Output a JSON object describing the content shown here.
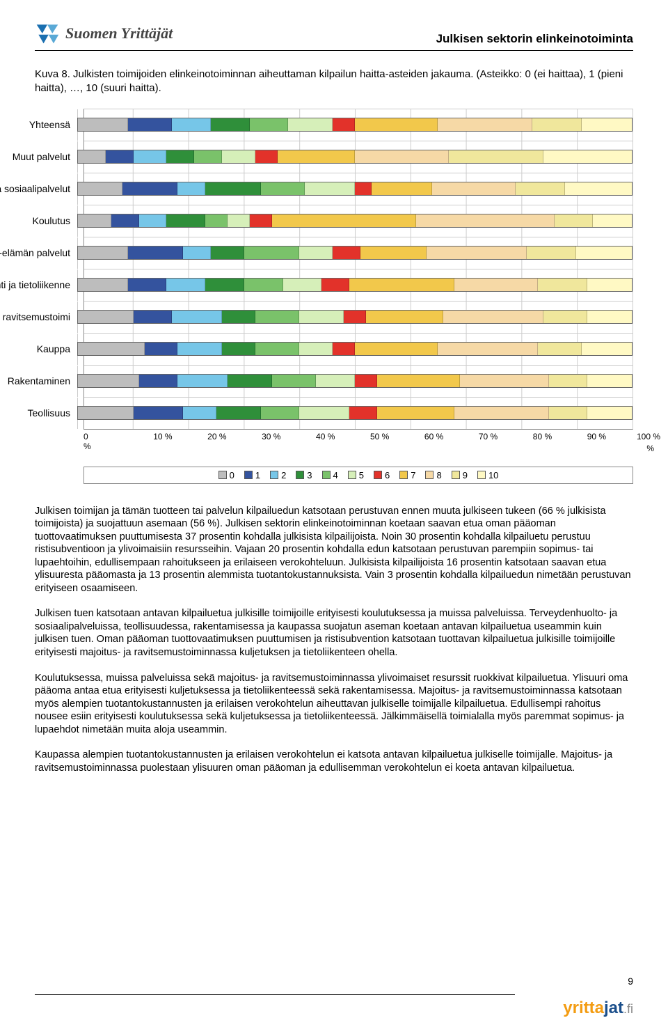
{
  "header": {
    "brand_text": "Suomen Yrittäjät",
    "doc_title": "Julkisen sektorin elinkeinotoiminta"
  },
  "caption": "Kuva 8. Julkisten toimijoiden elinkeinotoiminnan aiheuttaman kilpailun haitta-asteiden jakauma. (Asteikko: 0 (ei haittaa), 1 (pieni haitta), …, 10 (suuri haitta).",
  "chart": {
    "series_labels": [
      "0",
      "1",
      "2",
      "3",
      "4",
      "5",
      "6",
      "7",
      "8",
      "9",
      "10"
    ],
    "series_colors": [
      "#bdbdbd",
      "#34539e",
      "#76c6e8",
      "#2f8f3a",
      "#7ac26a",
      "#d6efb9",
      "#e2322a",
      "#f2c84b",
      "#f6d9a6",
      "#f0e79c",
      "#fff9c4"
    ],
    "axis_labels": [
      "0 %",
      "10 %",
      "20 %",
      "30 %",
      "40 %",
      "50 %",
      "60 %",
      "70 %",
      "80 %",
      "90 %",
      "100 %"
    ],
    "categories": [
      {
        "label": "Yhteensä",
        "values": [
          9,
          8,
          7,
          7,
          7,
          8,
          4,
          15,
          17,
          9,
          9
        ]
      },
      {
        "label": "Muut palvelut",
        "values": [
          5,
          5,
          6,
          5,
          5,
          6,
          4,
          14,
          17,
          17,
          16
        ]
      },
      {
        "label": "Terveydenhuolto- ja sosiaalipalvelut",
        "values": [
          8,
          10,
          5,
          10,
          8,
          9,
          3,
          11,
          15,
          9,
          12
        ]
      },
      {
        "label": "Koulutus",
        "values": [
          6,
          5,
          5,
          7,
          4,
          4,
          4,
          26,
          25,
          7,
          7
        ]
      },
      {
        "label": "Liike-elämän palvelut",
        "values": [
          9,
          10,
          5,
          6,
          10,
          6,
          5,
          12,
          18,
          9,
          10
        ]
      },
      {
        "label": "Kuljetus, varastointi ja tietoliikenne",
        "values": [
          9,
          7,
          7,
          7,
          7,
          7,
          5,
          19,
          15,
          9,
          8
        ]
      },
      {
        "label": "Majoitus- ja ravitsemustoimi",
        "values": [
          10,
          7,
          9,
          6,
          8,
          8,
          4,
          14,
          18,
          8,
          8
        ]
      },
      {
        "label": "Kauppa",
        "values": [
          12,
          6,
          8,
          6,
          8,
          6,
          4,
          15,
          18,
          8,
          9
        ]
      },
      {
        "label": "Rakentaminen",
        "values": [
          11,
          7,
          9,
          8,
          8,
          7,
          4,
          15,
          16,
          7,
          8
        ]
      },
      {
        "label": "Teollisuus",
        "values": [
          10,
          9,
          6,
          8,
          7,
          9,
          5,
          14,
          17,
          7,
          8
        ]
      }
    ]
  },
  "paragraphs": [
    "Julkisen toimijan ja tämän tuotteen tai palvelun kilpailuedun katsotaan perustuvan ennen muuta julkiseen tukeen (66 % julkisista toimijoista) ja suojattuun asemaan (56 %). Julkisen sektorin elinkeinotoiminnan koetaan saavan etua oman pääoman tuottovaatimuksen puuttumisesta 37 prosentin kohdalla julkisista kilpailijoista. Noin 30 prosentin kohdalla kilpailuetu perustuu ristisubventioon ja ylivoimaisiin resursseihin. Vajaan 20 prosentin kohdalla edun katsotaan perustuvan parempiin sopimus- tai lupaehtoihin, edullisempaan rahoitukseen ja erilaiseen verokohteluun. Julkisista kilpailijoista 16 prosentin katsotaan saavan etua ylisuuresta pääomasta ja 13 prosentin alemmista tuotantokustannuksista. Vain 3 prosentin kohdalla kilpailuedun nimetään perustuvan erityiseen osaamiseen.",
    "Julkisen tuen katsotaan antavan kilpailuetua julkisille toimijoille erityisesti koulutuksessa ja muissa palveluissa. Terveydenhuolto- ja sosiaalipalveluissa, teollisuudessa, rakentamisessa ja kaupassa suojatun aseman koetaan antavan kilpailuetua useammin kuin julkisen tuen. Oman pääoman tuottovaatimuksen puuttumisen ja ristisubvention katsotaan tuottavan kilpailuetua julkisille toimijoille erityisesti majoitus- ja ravitsemustoiminnassa kuljetuksen ja tietoliikenteen ohella.",
    "Koulutuksessa, muissa palveluissa sekä majoitus- ja ravitsemustoiminnassa ylivoimaiset resurssit ruokkivat kilpailuetua. Ylisuuri oma pääoma antaa etua erityisesti kuljetuksessa ja tietoliikenteessä sekä rakentamisessa. Majoitus- ja ravitsemustoiminnassa katsotaan myös alempien tuotantokustannusten ja erilaisen verokohtelun aiheuttavan julkiselle toimijalle kilpailuetua. Edullisempi rahoitus nousee esiin erityisesti koulutuksessa sekä kuljetuksessa ja tietoliikenteessä. Jälkimmäisellä toimialalla myös paremmat sopimus- ja lupaehdot nimetään muita aloja useammin.",
    "Kaupassa alempien tuotantokustannusten ja erilaisen verokohtelun ei katsota antavan kilpailuetua julkiselle toimijalle. Majoitus- ja ravitsemustoiminnassa puolestaan ylisuuren oman pääoman ja edullisemman verokohtelun ei koeta antavan kilpailuetua."
  ],
  "page_number": "9",
  "footer_logo": {
    "part1": "yritta",
    "part2": "jat",
    "part3": ".fi"
  }
}
